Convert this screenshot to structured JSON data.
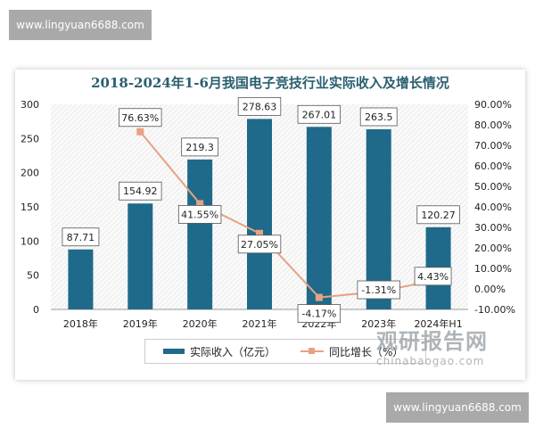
{
  "watermark_text": "www.lingyuan6688.com",
  "logo": {
    "cn": "观研报告网",
    "en": "chinabaogao.com"
  },
  "chart_data": {
    "type": "bar+line",
    "title": "2018-2024年1-6月我国电子竞技行业实际收入及增长情况",
    "categories": [
      "2018年",
      "2019年",
      "2020年",
      "2021年",
      "2022年",
      "2023年",
      "2024年H1"
    ],
    "series": [
      {
        "name": "实际收入（亿元）",
        "type": "bar",
        "axis": "left",
        "values": [
          87.71,
          154.92,
          219.3,
          278.63,
          267.01,
          263.5,
          120.27
        ],
        "labels": [
          "87.71",
          "154.92",
          "219.3",
          "278.63",
          "267.01",
          "263.5",
          "120.27"
        ],
        "color": "#1f6a8a"
      },
      {
        "name": "同比增长（%）",
        "type": "line",
        "axis": "right",
        "values": [
          null,
          76.63,
          41.55,
          27.05,
          -4.17,
          -1.31,
          4.43
        ],
        "labels": [
          "",
          "76.63%",
          "41.55%",
          "27.05%",
          "-4.17%",
          "-1.31%",
          "4.43%"
        ],
        "color": "#e8a182"
      }
    ],
    "y_left": {
      "ylim": [
        0,
        300
      ],
      "ticks": [
        "0",
        "50",
        "100",
        "150",
        "200",
        "250",
        "300"
      ]
    },
    "y_right": {
      "ylim": [
        -10,
        90
      ],
      "ticks": [
        "-10.00%",
        "0.00%",
        "10.00%",
        "20.00%",
        "30.00%",
        "40.00%",
        "50.00%",
        "60.00%",
        "70.00%",
        "80.00%",
        "90.00%"
      ]
    },
    "grid": false,
    "legend": "bottom"
  }
}
